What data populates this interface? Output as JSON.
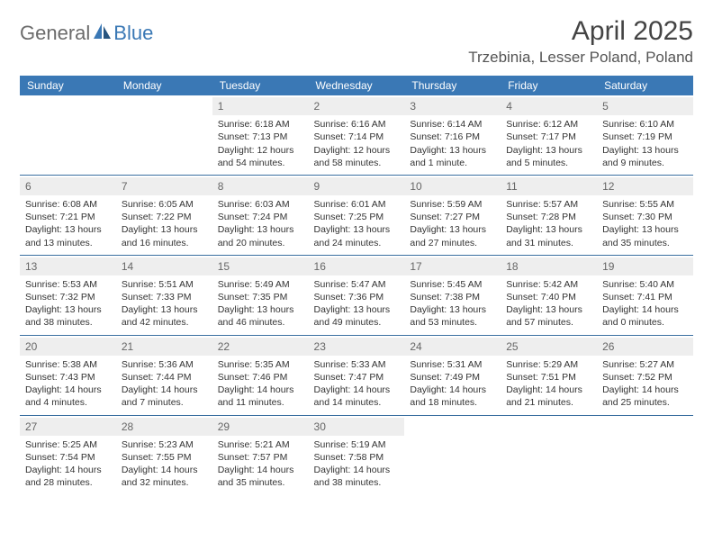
{
  "brand": {
    "part1": "General",
    "part2": "Blue"
  },
  "title": "April 2025",
  "location": "Trzebinia, Lesser Poland, Poland",
  "colors": {
    "header_bg": "#3a78b5",
    "header_text": "#ffffff",
    "daynum_bg": "#eeeeee",
    "row_border": "#3a6fa0",
    "brand_gray": "#6b6b6b",
    "brand_blue": "#3a78b5"
  },
  "weekdays": [
    "Sunday",
    "Monday",
    "Tuesday",
    "Wednesday",
    "Thursday",
    "Friday",
    "Saturday"
  ],
  "weeks": [
    [
      {
        "n": "",
        "sr": "",
        "ss": "",
        "dl": ""
      },
      {
        "n": "",
        "sr": "",
        "ss": "",
        "dl": ""
      },
      {
        "n": "1",
        "sr": "Sunrise: 6:18 AM",
        "ss": "Sunset: 7:13 PM",
        "dl": "Daylight: 12 hours and 54 minutes."
      },
      {
        "n": "2",
        "sr": "Sunrise: 6:16 AM",
        "ss": "Sunset: 7:14 PM",
        "dl": "Daylight: 12 hours and 58 minutes."
      },
      {
        "n": "3",
        "sr": "Sunrise: 6:14 AM",
        "ss": "Sunset: 7:16 PM",
        "dl": "Daylight: 13 hours and 1 minute."
      },
      {
        "n": "4",
        "sr": "Sunrise: 6:12 AM",
        "ss": "Sunset: 7:17 PM",
        "dl": "Daylight: 13 hours and 5 minutes."
      },
      {
        "n": "5",
        "sr": "Sunrise: 6:10 AM",
        "ss": "Sunset: 7:19 PM",
        "dl": "Daylight: 13 hours and 9 minutes."
      }
    ],
    [
      {
        "n": "6",
        "sr": "Sunrise: 6:08 AM",
        "ss": "Sunset: 7:21 PM",
        "dl": "Daylight: 13 hours and 13 minutes."
      },
      {
        "n": "7",
        "sr": "Sunrise: 6:05 AM",
        "ss": "Sunset: 7:22 PM",
        "dl": "Daylight: 13 hours and 16 minutes."
      },
      {
        "n": "8",
        "sr": "Sunrise: 6:03 AM",
        "ss": "Sunset: 7:24 PM",
        "dl": "Daylight: 13 hours and 20 minutes."
      },
      {
        "n": "9",
        "sr": "Sunrise: 6:01 AM",
        "ss": "Sunset: 7:25 PM",
        "dl": "Daylight: 13 hours and 24 minutes."
      },
      {
        "n": "10",
        "sr": "Sunrise: 5:59 AM",
        "ss": "Sunset: 7:27 PM",
        "dl": "Daylight: 13 hours and 27 minutes."
      },
      {
        "n": "11",
        "sr": "Sunrise: 5:57 AM",
        "ss": "Sunset: 7:28 PM",
        "dl": "Daylight: 13 hours and 31 minutes."
      },
      {
        "n": "12",
        "sr": "Sunrise: 5:55 AM",
        "ss": "Sunset: 7:30 PM",
        "dl": "Daylight: 13 hours and 35 minutes."
      }
    ],
    [
      {
        "n": "13",
        "sr": "Sunrise: 5:53 AM",
        "ss": "Sunset: 7:32 PM",
        "dl": "Daylight: 13 hours and 38 minutes."
      },
      {
        "n": "14",
        "sr": "Sunrise: 5:51 AM",
        "ss": "Sunset: 7:33 PM",
        "dl": "Daylight: 13 hours and 42 minutes."
      },
      {
        "n": "15",
        "sr": "Sunrise: 5:49 AM",
        "ss": "Sunset: 7:35 PM",
        "dl": "Daylight: 13 hours and 46 minutes."
      },
      {
        "n": "16",
        "sr": "Sunrise: 5:47 AM",
        "ss": "Sunset: 7:36 PM",
        "dl": "Daylight: 13 hours and 49 minutes."
      },
      {
        "n": "17",
        "sr": "Sunrise: 5:45 AM",
        "ss": "Sunset: 7:38 PM",
        "dl": "Daylight: 13 hours and 53 minutes."
      },
      {
        "n": "18",
        "sr": "Sunrise: 5:42 AM",
        "ss": "Sunset: 7:40 PM",
        "dl": "Daylight: 13 hours and 57 minutes."
      },
      {
        "n": "19",
        "sr": "Sunrise: 5:40 AM",
        "ss": "Sunset: 7:41 PM",
        "dl": "Daylight: 14 hours and 0 minutes."
      }
    ],
    [
      {
        "n": "20",
        "sr": "Sunrise: 5:38 AM",
        "ss": "Sunset: 7:43 PM",
        "dl": "Daylight: 14 hours and 4 minutes."
      },
      {
        "n": "21",
        "sr": "Sunrise: 5:36 AM",
        "ss": "Sunset: 7:44 PM",
        "dl": "Daylight: 14 hours and 7 minutes."
      },
      {
        "n": "22",
        "sr": "Sunrise: 5:35 AM",
        "ss": "Sunset: 7:46 PM",
        "dl": "Daylight: 14 hours and 11 minutes."
      },
      {
        "n": "23",
        "sr": "Sunrise: 5:33 AM",
        "ss": "Sunset: 7:47 PM",
        "dl": "Daylight: 14 hours and 14 minutes."
      },
      {
        "n": "24",
        "sr": "Sunrise: 5:31 AM",
        "ss": "Sunset: 7:49 PM",
        "dl": "Daylight: 14 hours and 18 minutes."
      },
      {
        "n": "25",
        "sr": "Sunrise: 5:29 AM",
        "ss": "Sunset: 7:51 PM",
        "dl": "Daylight: 14 hours and 21 minutes."
      },
      {
        "n": "26",
        "sr": "Sunrise: 5:27 AM",
        "ss": "Sunset: 7:52 PM",
        "dl": "Daylight: 14 hours and 25 minutes."
      }
    ],
    [
      {
        "n": "27",
        "sr": "Sunrise: 5:25 AM",
        "ss": "Sunset: 7:54 PM",
        "dl": "Daylight: 14 hours and 28 minutes."
      },
      {
        "n": "28",
        "sr": "Sunrise: 5:23 AM",
        "ss": "Sunset: 7:55 PM",
        "dl": "Daylight: 14 hours and 32 minutes."
      },
      {
        "n": "29",
        "sr": "Sunrise: 5:21 AM",
        "ss": "Sunset: 7:57 PM",
        "dl": "Daylight: 14 hours and 35 minutes."
      },
      {
        "n": "30",
        "sr": "Sunrise: 5:19 AM",
        "ss": "Sunset: 7:58 PM",
        "dl": "Daylight: 14 hours and 38 minutes."
      },
      {
        "n": "",
        "sr": "",
        "ss": "",
        "dl": ""
      },
      {
        "n": "",
        "sr": "",
        "ss": "",
        "dl": ""
      },
      {
        "n": "",
        "sr": "",
        "ss": "",
        "dl": ""
      }
    ]
  ]
}
